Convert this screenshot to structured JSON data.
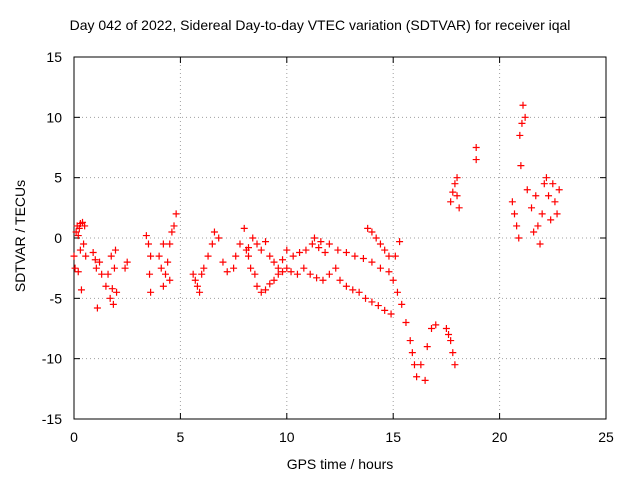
{
  "chart_data": {
    "type": "scatter",
    "title": "Day 042 of 2022, Sidereal Day-to-day VTEC variation (SDTVAR) for receiver iqal",
    "xlabel": "GPS time / hours",
    "ylabel": "SDTVAR / TECUs",
    "xlim": [
      0,
      25
    ],
    "ylim": [
      -15,
      15
    ],
    "xticks": [
      "0",
      "5",
      "10",
      "15",
      "20",
      "25"
    ],
    "yticks": [
      "-15",
      "-10",
      "-5",
      "0",
      "5",
      "10",
      "15"
    ],
    "grid": true,
    "marker": "+",
    "color": "#ff0000",
    "series": [
      {
        "name": "iqal",
        "points": [
          [
            0.0,
            -1.5
          ],
          [
            0.05,
            -2.5
          ],
          [
            0.1,
            0.5
          ],
          [
            0.15,
            1.0
          ],
          [
            0.2,
            -2.8
          ],
          [
            0.25,
            0.8
          ],
          [
            0.3,
            1.2
          ],
          [
            0.35,
            -4.3
          ],
          [
            0.4,
            1.3
          ],
          [
            0.45,
            -0.5
          ],
          [
            0.5,
            1.0
          ],
          [
            0.55,
            -1.5
          ],
          [
            0.3,
            -1.0
          ],
          [
            0.2,
            0.2
          ],
          [
            0.9,
            -1.2
          ],
          [
            1.0,
            -1.8
          ],
          [
            1.05,
            -2.5
          ],
          [
            1.1,
            -5.8
          ],
          [
            1.2,
            -2.0
          ],
          [
            1.3,
            -3.0
          ],
          [
            1.5,
            -4.0
          ],
          [
            1.6,
            -3.0
          ],
          [
            1.7,
            -5.0
          ],
          [
            1.75,
            -1.5
          ],
          [
            1.8,
            -4.2
          ],
          [
            1.85,
            -5.5
          ],
          [
            1.9,
            -2.5
          ],
          [
            2.0,
            -4.5
          ],
          [
            1.95,
            -1.0
          ],
          [
            2.4,
            -2.5
          ],
          [
            2.5,
            -2.0
          ],
          [
            3.4,
            0.2
          ],
          [
            3.5,
            -0.5
          ],
          [
            3.6,
            -1.5
          ],
          [
            3.55,
            -3.0
          ],
          [
            3.6,
            -4.5
          ],
          [
            4.0,
            -1.5
          ],
          [
            4.1,
            -2.5
          ],
          [
            4.2,
            -0.5
          ],
          [
            4.3,
            -3.0
          ],
          [
            4.4,
            -2.0
          ],
          [
            4.5,
            -0.5
          ],
          [
            4.6,
            0.5
          ],
          [
            4.7,
            1.0
          ],
          [
            4.8,
            2.0
          ],
          [
            4.5,
            -3.5
          ],
          [
            4.2,
            -4.0
          ],
          [
            5.6,
            -3.0
          ],
          [
            5.7,
            -3.5
          ],
          [
            5.8,
            -4.0
          ],
          [
            5.9,
            -4.5
          ],
          [
            6.0,
            -3.0
          ],
          [
            6.1,
            -2.5
          ],
          [
            6.3,
            -1.5
          ],
          [
            6.5,
            -0.5
          ],
          [
            6.6,
            0.5
          ],
          [
            6.8,
            0.0
          ],
          [
            7.0,
            -2.0
          ],
          [
            7.2,
            -2.8
          ],
          [
            7.5,
            -2.5
          ],
          [
            7.6,
            -1.5
          ],
          [
            7.8,
            -0.5
          ],
          [
            8.0,
            0.8
          ],
          [
            8.1,
            -1.0
          ],
          [
            8.2,
            -1.5
          ],
          [
            8.3,
            -2.5
          ],
          [
            8.5,
            -3.0
          ],
          [
            8.6,
            -4.0
          ],
          [
            8.8,
            -4.5
          ],
          [
            9.0,
            -4.3
          ],
          [
            9.2,
            -3.8
          ],
          [
            9.4,
            -3.5
          ],
          [
            9.6,
            -3.0
          ],
          [
            9.8,
            -2.8
          ],
          [
            10.0,
            -2.5
          ],
          [
            10.2,
            -2.8
          ],
          [
            10.5,
            -3.0
          ],
          [
            8.2,
            -0.8
          ],
          [
            8.4,
            0.0
          ],
          [
            8.6,
            -0.5
          ],
          [
            8.8,
            -1.0
          ],
          [
            9.0,
            -0.3
          ],
          [
            9.2,
            -1.5
          ],
          [
            9.4,
            -2.0
          ],
          [
            9.6,
            -2.5
          ],
          [
            9.8,
            -1.8
          ],
          [
            10.0,
            -1.0
          ],
          [
            10.3,
            -1.5
          ],
          [
            10.6,
            -1.2
          ],
          [
            10.9,
            -1.0
          ],
          [
            11.2,
            -0.5
          ],
          [
            11.5,
            -0.8
          ],
          [
            11.8,
            -1.2
          ],
          [
            10.8,
            -2.5
          ],
          [
            11.1,
            -3.0
          ],
          [
            11.4,
            -3.3
          ],
          [
            11.7,
            -3.5
          ],
          [
            12.0,
            -3.0
          ],
          [
            12.3,
            -2.5
          ],
          [
            12.5,
            -3.5
          ],
          [
            12.8,
            -4.0
          ],
          [
            13.1,
            -4.3
          ],
          [
            13.4,
            -4.5
          ],
          [
            13.7,
            -5.0
          ],
          [
            14.0,
            -5.3
          ],
          [
            14.3,
            -5.6
          ],
          [
            14.6,
            -6.0
          ],
          [
            14.9,
            -6.3
          ],
          [
            11.3,
            0.0
          ],
          [
            11.6,
            -0.3
          ],
          [
            12.0,
            -0.5
          ],
          [
            12.4,
            -1.0
          ],
          [
            12.8,
            -1.2
          ],
          [
            13.2,
            -1.5
          ],
          [
            13.6,
            -1.7
          ],
          [
            14.0,
            -2.0
          ],
          [
            14.4,
            -2.5
          ],
          [
            14.8,
            -2.8
          ],
          [
            15.1,
            -1.5
          ],
          [
            15.3,
            -0.3
          ],
          [
            13.8,
            0.8
          ],
          [
            14.0,
            0.5
          ],
          [
            14.2,
            0.0
          ],
          [
            14.4,
            -0.5
          ],
          [
            14.6,
            -1.0
          ],
          [
            14.8,
            -1.5
          ],
          [
            15.0,
            -3.5
          ],
          [
            15.2,
            -4.5
          ],
          [
            15.4,
            -5.5
          ],
          [
            15.6,
            -7.0
          ],
          [
            15.8,
            -8.5
          ],
          [
            15.9,
            -9.5
          ],
          [
            16.0,
            -10.5
          ],
          [
            16.1,
            -11.5
          ],
          [
            16.3,
            -10.5
          ],
          [
            16.5,
            -11.8
          ],
          [
            16.6,
            -9.0
          ],
          [
            16.8,
            -7.5
          ],
          [
            17.0,
            -7.2
          ],
          [
            17.5,
            -7.5
          ],
          [
            17.6,
            -8.0
          ],
          [
            17.7,
            -8.5
          ],
          [
            17.8,
            -9.5
          ],
          [
            17.9,
            -10.5
          ],
          [
            17.7,
            3.0
          ],
          [
            17.8,
            3.8
          ],
          [
            17.9,
            4.5
          ],
          [
            18.0,
            5.0
          ],
          [
            18.1,
            2.5
          ],
          [
            18.0,
            3.5
          ],
          [
            18.9,
            7.5
          ],
          [
            18.9,
            6.5
          ],
          [
            20.6,
            3.0
          ],
          [
            20.7,
            2.0
          ],
          [
            20.8,
            1.0
          ],
          [
            20.9,
            0.0
          ],
          [
            20.95,
            8.5
          ],
          [
            21.0,
            6.0
          ],
          [
            21.05,
            9.5
          ],
          [
            21.1,
            11.0
          ],
          [
            21.2,
            10.0
          ],
          [
            21.3,
            4.0
          ],
          [
            21.5,
            2.5
          ],
          [
            21.6,
            0.5
          ],
          [
            21.7,
            3.5
          ],
          [
            21.8,
            1.0
          ],
          [
            21.9,
            -0.5
          ],
          [
            22.0,
            2.0
          ],
          [
            22.1,
            4.5
          ],
          [
            22.2,
            5.0
          ],
          [
            22.3,
            3.5
          ],
          [
            22.4,
            1.5
          ],
          [
            22.5,
            4.5
          ],
          [
            22.6,
            3.0
          ],
          [
            22.7,
            2.0
          ],
          [
            22.8,
            4.0
          ]
        ]
      }
    ]
  }
}
